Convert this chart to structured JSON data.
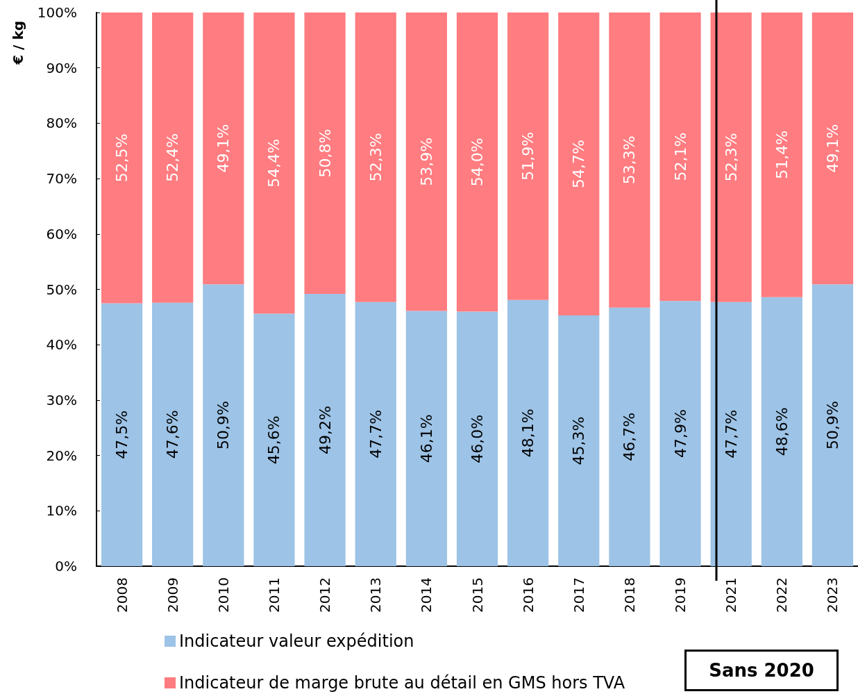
{
  "chart_data": {
    "type": "bar",
    "stacked": true,
    "ylabel": "€ / kg",
    "categories": [
      "2008",
      "2009",
      "2010",
      "2011",
      "2012",
      "2013",
      "2014",
      "2015",
      "2016",
      "2017",
      "2018",
      "2019",
      "2021",
      "2022",
      "2023"
    ],
    "series": [
      {
        "name": "Indicateur valeur expédition",
        "color": "#9dc3e6",
        "values": [
          47.5,
          47.6,
          50.9,
          45.6,
          49.2,
          47.7,
          46.1,
          46.0,
          48.1,
          45.3,
          46.7,
          47.9,
          47.7,
          48.6,
          50.9
        ],
        "value_labels": [
          "47,5%",
          "47,6%",
          "50,9%",
          "45,6%",
          "49,2%",
          "47,7%",
          "46,1%",
          "46,0%",
          "48,1%",
          "45,3%",
          "46,7%",
          "47,9%",
          "47,7%",
          "48,6%",
          "50,9%"
        ]
      },
      {
        "name": "Indicateur de marge brute au détail en GMS hors TVA",
        "color": "#ff7c80",
        "values": [
          52.5,
          52.4,
          49.1,
          54.4,
          50.8,
          52.3,
          53.9,
          54.0,
          51.9,
          54.7,
          53.3,
          52.1,
          52.3,
          51.4,
          49.1
        ],
        "value_labels": [
          "52,5%",
          "52,4%",
          "49,1%",
          "54,4%",
          "50,8%",
          "52,3%",
          "53,9%",
          "54,0%",
          "51,9%",
          "54,7%",
          "53,3%",
          "52,1%",
          "52,3%",
          "51,4%",
          "49,1%"
        ]
      }
    ],
    "ylim": [
      0,
      100
    ],
    "yticks": [
      {
        "value": 0,
        "label": "0%"
      },
      {
        "value": 10,
        "label": "10%"
      },
      {
        "value": 20,
        "label": "20%"
      },
      {
        "value": 30,
        "label": "30%"
      },
      {
        "value": 40,
        "label": "40%"
      },
      {
        "value": 50,
        "label": "50%"
      },
      {
        "value": 60,
        "label": "60%"
      },
      {
        "value": 70,
        "label": "70%"
      },
      {
        "value": 80,
        "label": "80%"
      },
      {
        "value": 90,
        "label": "90%"
      },
      {
        "value": 100,
        "label": "100%"
      }
    ],
    "ref_lines": [
      {
        "axis": "x",
        "value": "2021",
        "color": "#000000"
      }
    ],
    "annotations": [
      "Sans 2020"
    ],
    "legend": "bottom left",
    "grid": false
  }
}
